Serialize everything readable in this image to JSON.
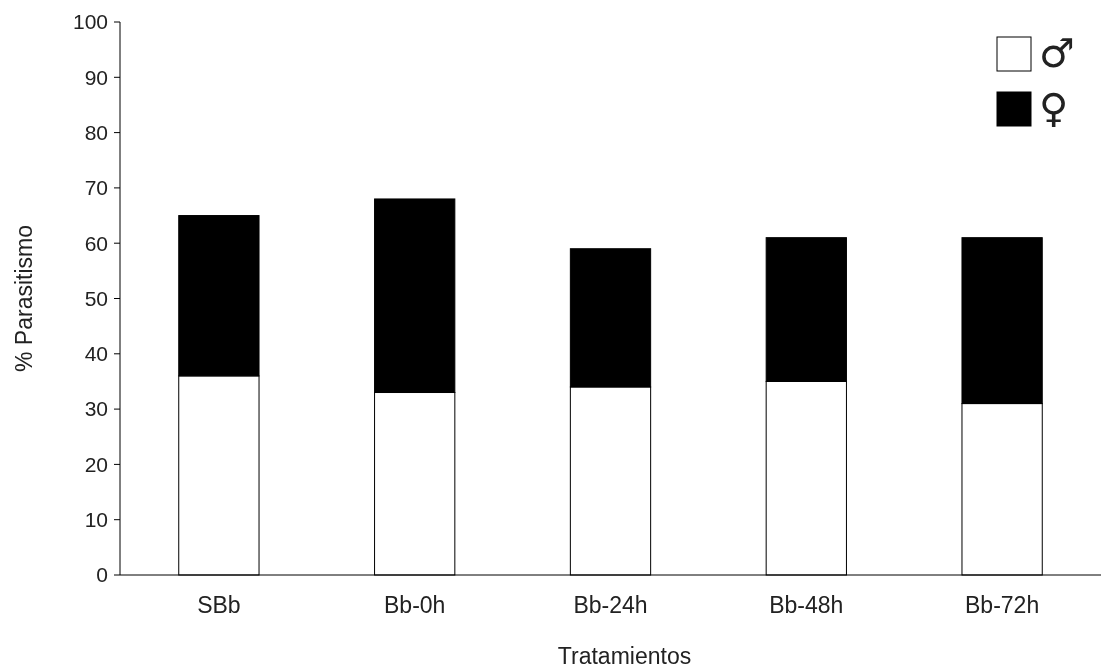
{
  "chart_data": {
    "type": "bar",
    "stacked": true,
    "xlabel": "Tratamientos",
    "ylabel": "% Parasitismo",
    "categories": [
      "SBb",
      "Bb-0h",
      "Bb-24h",
      "Bb-48h",
      "Bb-72h"
    ],
    "series": [
      {
        "name": "♂",
        "color": "#ffffff",
        "values": [
          36,
          33,
          34,
          35,
          31
        ]
      },
      {
        "name": "♀",
        "color": "#000000",
        "values": [
          29,
          35,
          25,
          26,
          30
        ]
      }
    ],
    "ylim": [
      0,
      100
    ],
    "yticks": [
      0,
      10,
      20,
      30,
      40,
      50,
      60,
      70,
      80,
      90,
      100
    ],
    "grid": false,
    "legend": "top right"
  }
}
